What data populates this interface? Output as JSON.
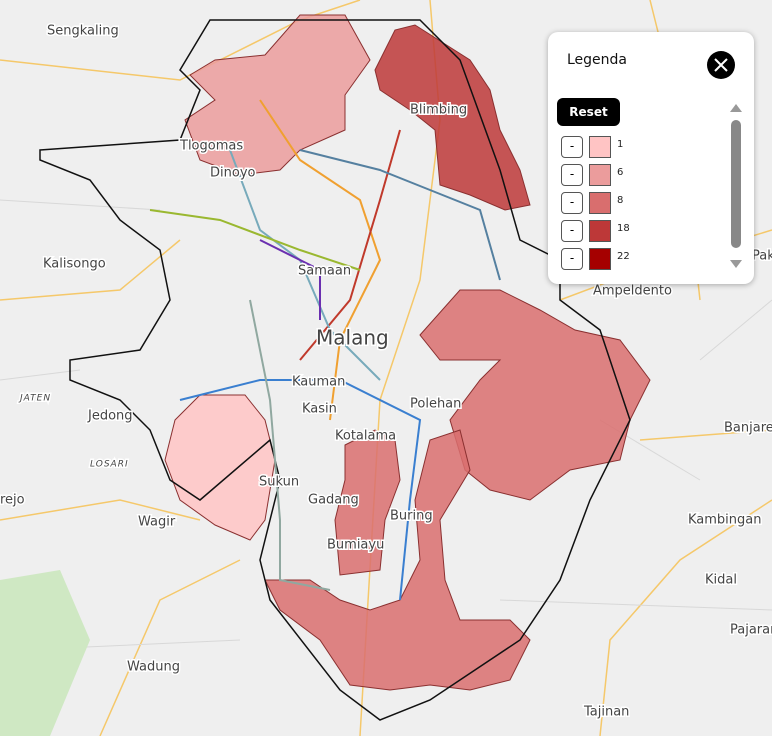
{
  "map": {
    "places": [
      "Sengkaling",
      "Tlogomas",
      "Dinoyo",
      "Blimbing",
      "Kalisongo",
      "Samaan",
      "Malang",
      "Kauman",
      "Kasin",
      "Polehan",
      "Kotalama",
      "Jedong",
      "JATEN",
      "LOSARI",
      "Sukun",
      "Gadang",
      "Wagir",
      "Buring",
      "Bumiayu",
      "Kambingan",
      "Banjarej",
      "Kidal",
      "Pajaran",
      "Wadung",
      "Tajinan",
      "Ampeldento",
      "rejo",
      "Pak"
    ],
    "legend": {
      "title": "Legenda",
      "reset": "Reset",
      "toggle": "-",
      "items": [
        {
          "label": "1",
          "color": "#ffc4c4"
        },
        {
          "label": "6",
          "color": "#eb9c9c"
        },
        {
          "label": "8",
          "color": "#d96e6e"
        },
        {
          "label": "18",
          "color": "#bd3838"
        },
        {
          "label": "22",
          "color": "#a50000"
        }
      ]
    }
  }
}
